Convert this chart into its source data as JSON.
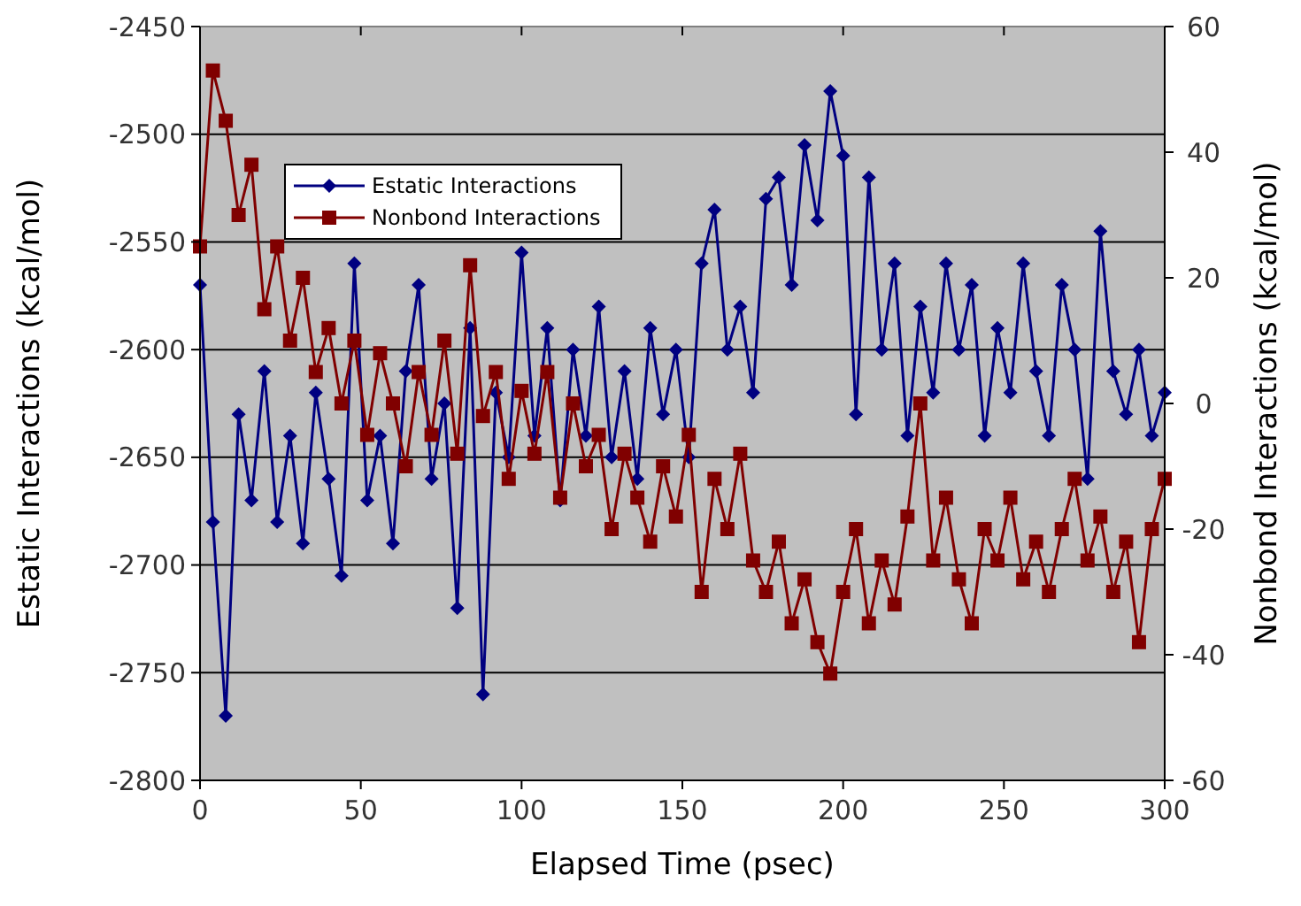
{
  "chart_data": {
    "type": "line",
    "xlabel": "Elapsed Time (psec)",
    "ylabel": "Estatic Interactions (kcal/mol)",
    "y2label": "Nonbond Interactions (kcal/mol)",
    "x": [
      0,
      4,
      8,
      12,
      16,
      20,
      24,
      28,
      32,
      36,
      40,
      44,
      48,
      52,
      56,
      60,
      64,
      68,
      72,
      76,
      80,
      84,
      88,
      92,
      96,
      100,
      104,
      108,
      112,
      116,
      120,
      124,
      128,
      132,
      136,
      140,
      144,
      148,
      152,
      156,
      160,
      164,
      168,
      172,
      176,
      180,
      184,
      188,
      192,
      196,
      200,
      204,
      208,
      212,
      216,
      220,
      224,
      228,
      232,
      236,
      240,
      244,
      248,
      252,
      256,
      260,
      264,
      268,
      272,
      276,
      280,
      284,
      288,
      292,
      296,
      300
    ],
    "series": [
      {
        "name": "Estatic Interactions",
        "color": "#000080",
        "marker": "diamond",
        "values": [
          -2570,
          -2680,
          -2770,
          -2630,
          -2670,
          -2610,
          -2680,
          -2640,
          -2690,
          -2620,
          -2660,
          -2705,
          -2560,
          -2670,
          -2640,
          -2690,
          -2610,
          -2570,
          -2660,
          -2625,
          -2720,
          -2590,
          -2760,
          -2620,
          -2650,
          -2555,
          -2640,
          -2590,
          -2670,
          -2600,
          -2640,
          -2580,
          -2650,
          -2610,
          -2660,
          -2590,
          -2630,
          -2600,
          -2650,
          -2560,
          -2535,
          -2600,
          -2580,
          -2620,
          -2530,
          -2520,
          -2570,
          -2505,
          -2540,
          -2480,
          -2510,
          -2630,
          -2520,
          -2600,
          -2560,
          -2640,
          -2580,
          -2620,
          -2560,
          -2600,
          -2570,
          -2640,
          -2590,
          -2620,
          -2560,
          -2610,
          -2640,
          -2570,
          -2600,
          -2660,
          -2545,
          -2610,
          -2630,
          -2600,
          -2640,
          -2620
        ]
      },
      {
        "name": "Nonbond Interactions",
        "color": "#800000",
        "marker": "square",
        "axis": "y2",
        "values": [
          25,
          53,
          45,
          30,
          38,
          15,
          25,
          10,
          20,
          5,
          12,
          0,
          10,
          -5,
          8,
          0,
          -10,
          5,
          -5,
          10,
          -8,
          22,
          -2,
          5,
          -12,
          2,
          -8,
          5,
          -15,
          0,
          -10,
          -5,
          -20,
          -8,
          -15,
          -22,
          -10,
          -18,
          -5,
          -30,
          -12,
          -20,
          -8,
          -25,
          -30,
          -22,
          -35,
          -28,
          -38,
          -43,
          -30,
          -20,
          -35,
          -25,
          -32,
          -18,
          0,
          -25,
          -15,
          -28,
          -35,
          -20,
          -25,
          -15,
          -28,
          -22,
          -30,
          -20,
          -12,
          -25,
          -18,
          -30,
          -22,
          -38,
          -20,
          -12
        ]
      }
    ],
    "xlim": [
      0,
      300
    ],
    "xticks": [
      0,
      50,
      100,
      150,
      200,
      250,
      300
    ],
    "ylim": [
      -2800,
      -2450
    ],
    "yticks": [
      -2800,
      -2750,
      -2700,
      -2650,
      -2600,
      -2550,
      -2500,
      -2450
    ],
    "y2lim": [
      -60,
      60
    ],
    "y2ticks": [
      -60,
      -40,
      -20,
      0,
      20,
      40,
      60
    ],
    "grid": "y",
    "legend": "top left",
    "line_style": "solid"
  }
}
